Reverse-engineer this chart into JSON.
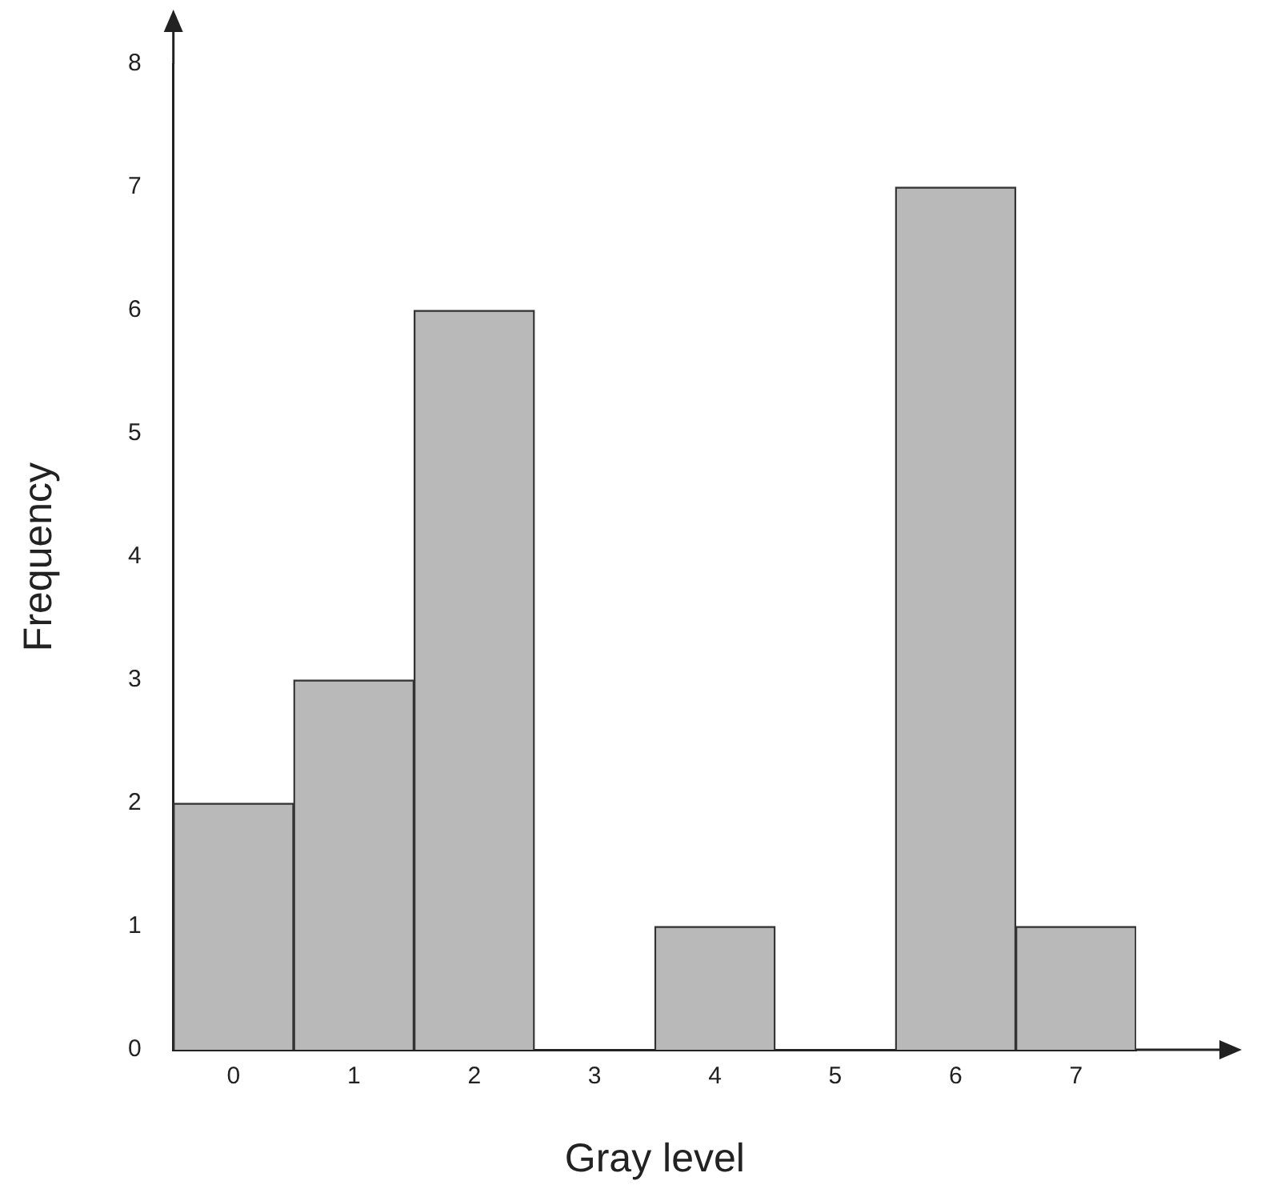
{
  "chart_data": {
    "type": "bar",
    "xlabel": "Gray level",
    "ylabel": "Frequency",
    "categories": [
      "0",
      "1",
      "2",
      "3",
      "4",
      "5",
      "6",
      "7"
    ],
    "values": [
      2,
      3,
      6,
      0,
      1,
      0,
      7,
      1
    ],
    "color": "#b9b9b9",
    "ylim": [
      0,
      8
    ],
    "yticks": [
      0,
      1,
      2,
      3,
      4,
      5,
      6,
      7,
      8
    ],
    "grid": false,
    "legend": false
  }
}
